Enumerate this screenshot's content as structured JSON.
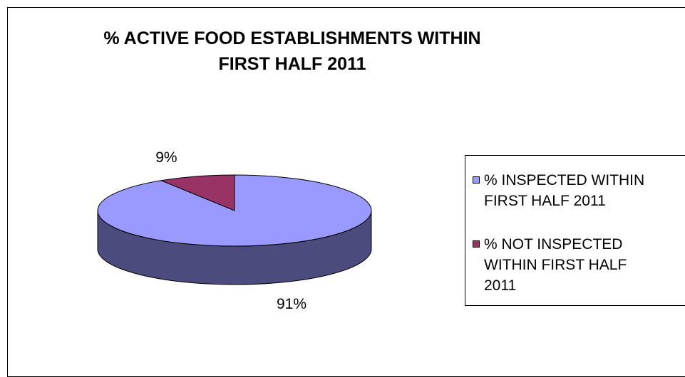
{
  "chart_data": {
    "type": "pie",
    "title_lines": [
      "% ACTIVE FOOD ESTABLISHMENTS WITHIN",
      "FIRST HALF 2011"
    ],
    "slices": [
      {
        "label": "% INSPECTED WITHIN FIRST HALF 2011",
        "value": 91,
        "data_label": "91%",
        "color": "#9999FF",
        "side_color": "#4B4B7D"
      },
      {
        "label": "% NOT INSPECTED WITHIN FIRST HALF 2011",
        "value": 9,
        "data_label": "9%",
        "color": "#993366",
        "side_color": "#4B1932"
      }
    ],
    "legend_position": "right",
    "three_d": true
  },
  "legend": {
    "items": [
      {
        "lines": [
          "% INSPECTED WITHIN",
          "FIRST HALF 2011"
        ]
      },
      {
        "lines": [
          "% NOT INSPECTED",
          "WITHIN FIRST HALF",
          "2011"
        ]
      }
    ]
  }
}
